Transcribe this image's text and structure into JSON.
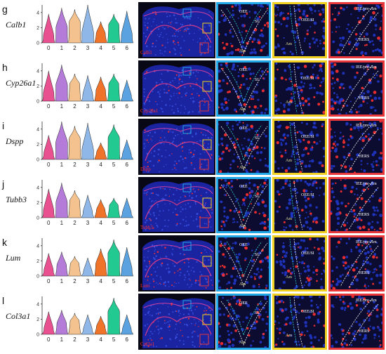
{
  "figure": {
    "colors": {
      "violin": [
        "#e8508f",
        "#b47cd8",
        "#f3c28e",
        "#8fb8e8",
        "#f0732a",
        "#22c990",
        "#5aa3e0"
      ],
      "frame_blue": "#22a7e6",
      "frame_yellow": "#f0d020",
      "frame_red": "#e8383c",
      "stain_red": "#ff3030",
      "nuclei_blue": "#2036c8"
    },
    "zoom_labels": {
      "oee": "OEE",
      "si": "SI",
      "am": "Am",
      "oee_si": "OEE/SI",
      "iee_pre_am": "IEE/pre-Am",
      "hers": "HERS"
    },
    "rows": [
      {
        "letter": "g",
        "gene": "Calb1",
        "stain_label": "Calb1"
      },
      {
        "letter": "h",
        "gene": "Cyp26a1",
        "stain_label": "Cyp26a1"
      },
      {
        "letter": "i",
        "gene": "Dspp",
        "stain_label": "Dspp"
      },
      {
        "letter": "j",
        "gene": "Tubb3",
        "stain_label": "Tubb3"
      },
      {
        "letter": "k",
        "gene": "Lum",
        "stain_label": "Lum"
      },
      {
        "letter": "l",
        "gene": "Col3a1",
        "stain_label": "Col3a1"
      }
    ]
  },
  "chart_data": [
    {
      "type": "violin",
      "gene": "Calb1",
      "categories": [
        "0",
        "1",
        "2",
        "3",
        "4",
        "5",
        "6"
      ],
      "yticks": [
        0,
        2,
        4
      ],
      "ylim": [
        0,
        5
      ],
      "max_values": [
        3.8,
        4.6,
        4.4,
        5.0,
        2.8,
        3.8,
        4.2
      ]
    },
    {
      "type": "violin",
      "gene": "Cyp26a1",
      "categories": [
        "0",
        "1",
        "2",
        "3",
        "4",
        "5",
        "6"
      ],
      "yticks": [
        0,
        2,
        4
      ],
      "ylim": [
        0,
        5
      ],
      "max_values": [
        4.0,
        4.8,
        3.6,
        3.4,
        3.2,
        3.6,
        2.8
      ]
    },
    {
      "type": "violin",
      "gene": "Dspp",
      "categories": [
        "0",
        "1",
        "2",
        "3",
        "4",
        "5",
        "6"
      ],
      "yticks": [
        0,
        2,
        4
      ],
      "ylim": [
        0,
        5
      ],
      "max_values": [
        3.2,
        5.0,
        4.4,
        4.8,
        2.2,
        4.6,
        2.6
      ]
    },
    {
      "type": "violin",
      "gene": "Tubb3",
      "categories": [
        "0",
        "1",
        "2",
        "3",
        "4",
        "5",
        "6"
      ],
      "yticks": [
        0,
        2,
        4
      ],
      "ylim": [
        0,
        5
      ],
      "max_values": [
        3.8,
        4.6,
        3.6,
        3.0,
        2.4,
        2.6,
        2.6
      ]
    },
    {
      "type": "violin",
      "gene": "Lum",
      "categories": [
        "0",
        "1",
        "2",
        "3",
        "4",
        "5",
        "6"
      ],
      "yticks": [
        0,
        2,
        4
      ],
      "ylim": [
        0,
        5
      ],
      "max_values": [
        3.0,
        3.2,
        2.6,
        2.4,
        3.6,
        4.8,
        3.8
      ]
    },
    {
      "type": "violin",
      "gene": "Col3a1",
      "categories": [
        "0",
        "1",
        "2",
        "3",
        "4",
        "5",
        "6"
      ],
      "yticks": [
        0,
        2,
        4
      ],
      "ylim": [
        0,
        5
      ],
      "max_values": [
        3.0,
        3.2,
        2.8,
        2.6,
        2.4,
        4.8,
        2.6
      ]
    }
  ]
}
